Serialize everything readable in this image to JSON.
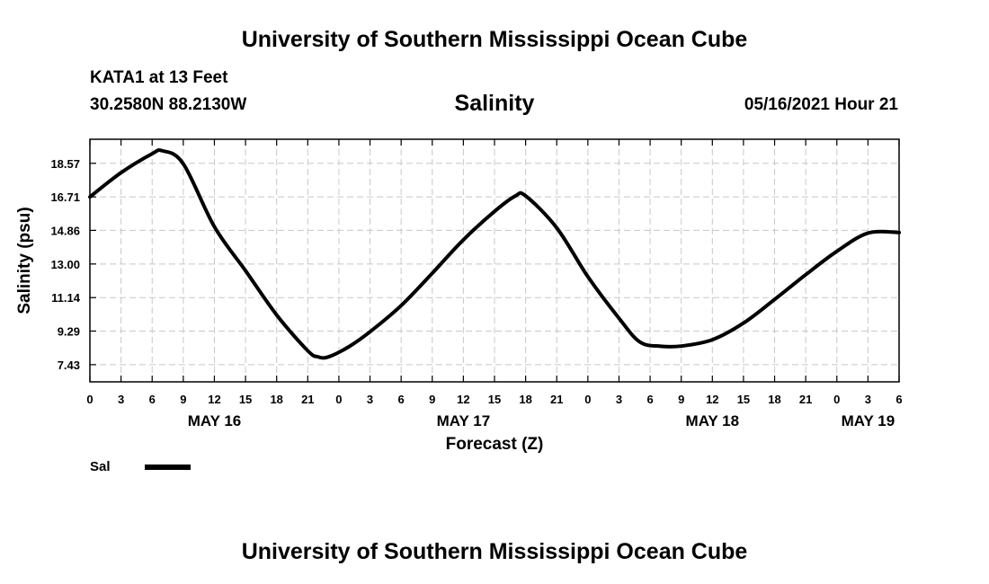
{
  "header": {
    "title": "University of Southern Mississippi Ocean Cube",
    "station": "KATA1 at 13 Feet",
    "coords": "30.2580N  88.2130W",
    "timestamp": "05/16/2021 Hour 21"
  },
  "footer": {
    "title": "University of Southern Mississippi Ocean Cube"
  },
  "colors": {
    "line": "#000000",
    "grid": "#c8c8c8",
    "frame": "#000000"
  },
  "chart_data": {
    "type": "line",
    "title": "Salinity",
    "xlabel": "Forecast (Z)",
    "ylabel": "Salinity (psu)",
    "ylim": [
      6.48,
      19.9
    ],
    "y_ticks": [
      "7.43",
      "9.29",
      "11.14",
      "13.00",
      "14.86",
      "16.71",
      "18.57"
    ],
    "x_ticks": [
      "0",
      "3",
      "6",
      "9",
      "12",
      "15",
      "18",
      "21",
      "0",
      "3",
      "6",
      "9",
      "12",
      "15",
      "18",
      "21",
      "0",
      "3",
      "6",
      "9",
      "12",
      "15",
      "18",
      "21",
      "0",
      "3",
      "6"
    ],
    "x_range_hours": [
      0,
      78
    ],
    "day_labels": [
      {
        "label": "MAY 16",
        "hour": 12
      },
      {
        "label": "MAY 17",
        "hour": 36
      },
      {
        "label": "MAY 18",
        "hour": 60
      },
      {
        "label": "MAY 19",
        "hour": 75
      }
    ],
    "grid": true,
    "legend_position": "bottom-left",
    "series": [
      {
        "name": "Sal",
        "x": [
          0,
          3,
          6,
          7,
          9,
          12,
          15,
          18,
          21,
          22,
          23,
          25,
          27,
          30,
          33,
          36,
          39,
          41,
          42,
          45,
          48,
          51,
          53,
          55,
          57,
          60,
          63,
          66,
          69,
          72,
          75,
          78
        ],
        "y": [
          16.71,
          18.05,
          19.1,
          19.26,
          18.55,
          15.06,
          12.63,
          10.18,
          8.2,
          7.86,
          7.86,
          8.44,
          9.25,
          10.7,
          12.49,
          14.34,
          15.91,
          16.76,
          16.77,
          15.0,
          12.3,
          10.0,
          8.69,
          8.45,
          8.46,
          8.81,
          9.73,
          11.04,
          12.41,
          13.7,
          14.71,
          14.74
        ]
      }
    ]
  }
}
